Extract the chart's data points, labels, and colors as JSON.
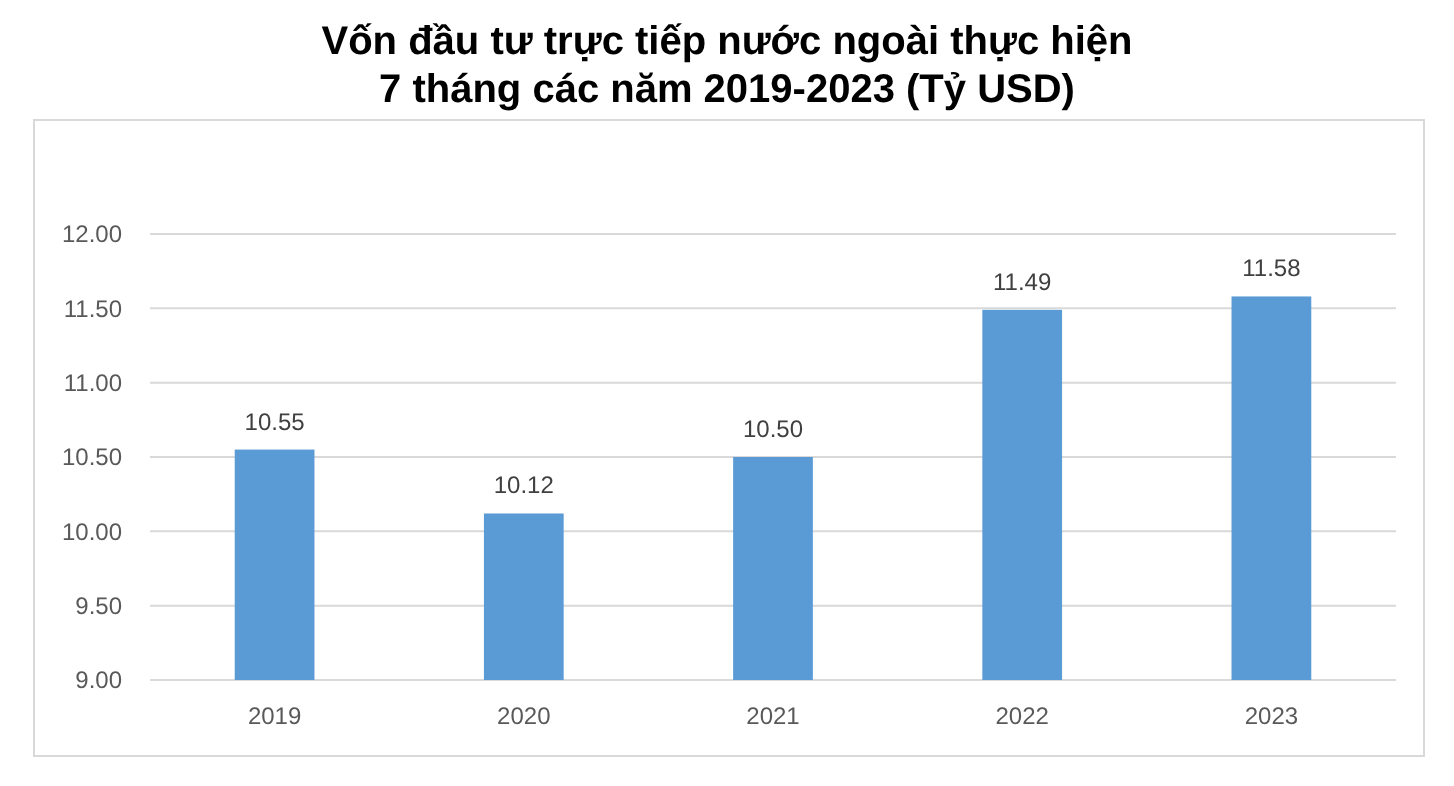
{
  "chart_data": {
    "type": "bar",
    "title": "Vốn đầu tư trực tiếp nước ngoài thực hiện\n7 tháng các năm 2019-2023 (Tỷ USD)",
    "categories": [
      "2019",
      "2020",
      "2021",
      "2022",
      "2023"
    ],
    "values": [
      10.55,
      10.12,
      10.5,
      11.49,
      11.58
    ],
    "value_labels": [
      "10.55",
      "10.12",
      "10.50",
      "11.49",
      "11.58"
    ],
    "color": "#5b9bd5",
    "ylim": [
      9,
      12
    ],
    "yticks": [
      {
        "value": 9,
        "label": "9.00"
      },
      {
        "value": 9.5,
        "label": "9.50"
      },
      {
        "value": 10,
        "label": "10.00"
      },
      {
        "value": 10.5,
        "label": "10.50"
      },
      {
        "value": 11,
        "label": "11.00"
      },
      {
        "value": 11.5,
        "label": "11.50"
      },
      {
        "value": 12,
        "label": "12.00"
      }
    ],
    "grid": "y"
  }
}
